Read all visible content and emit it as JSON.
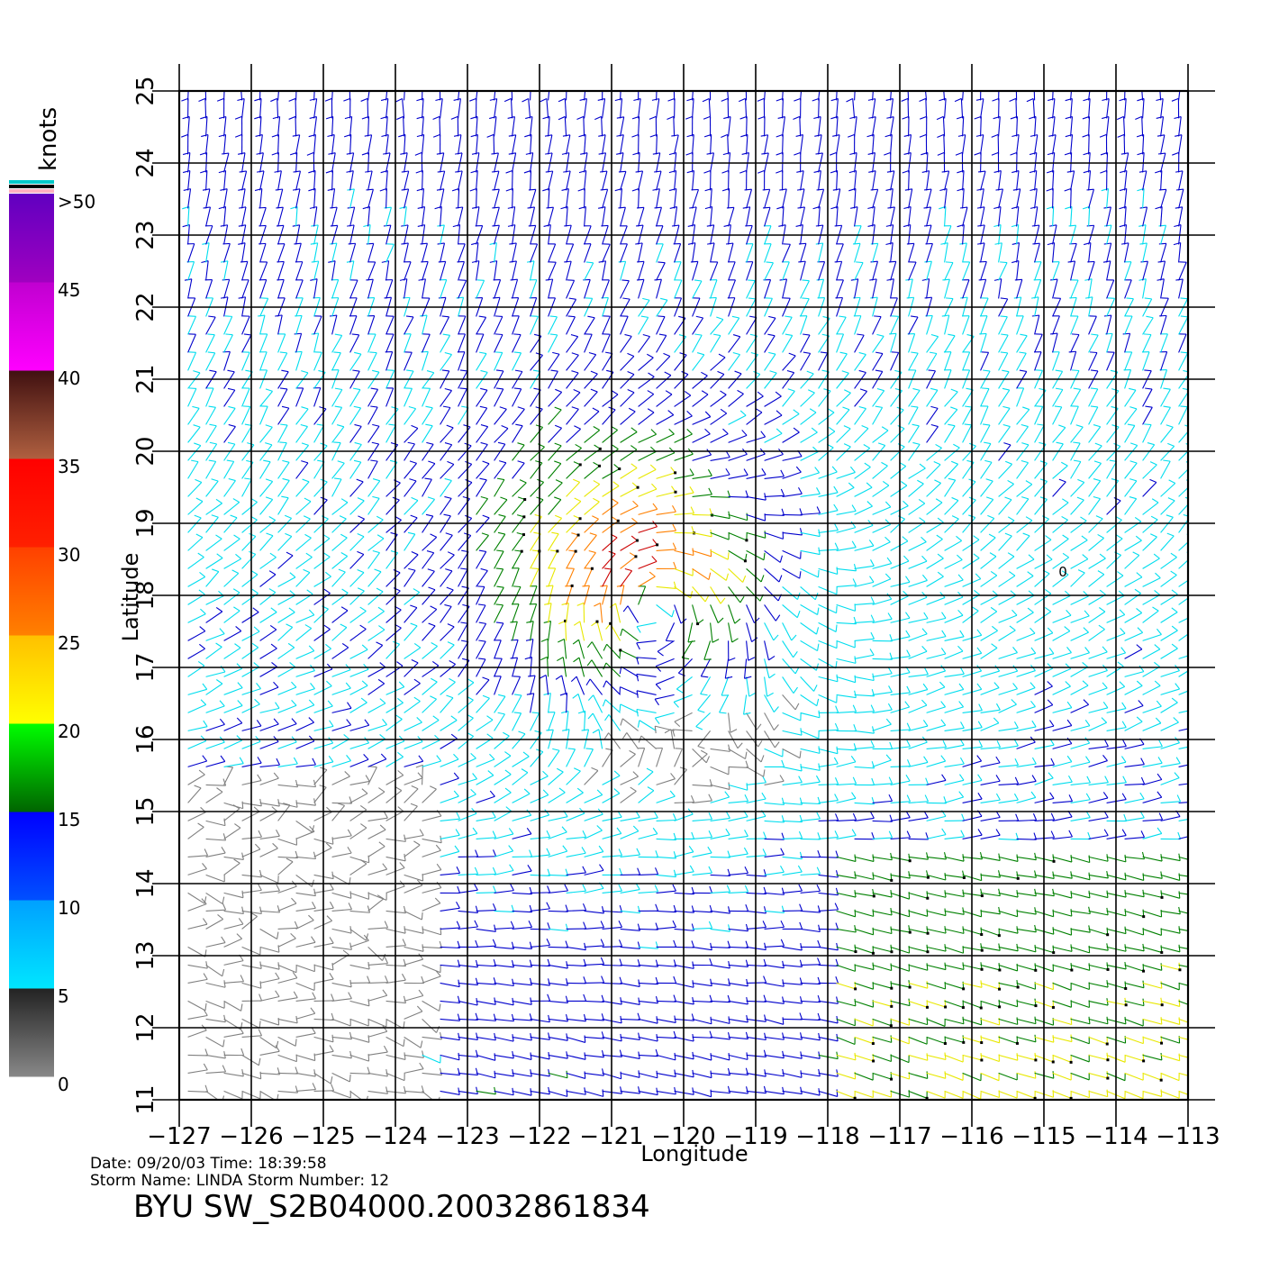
{
  "map": {
    "xlabel": "Longitude",
    "ylabel": "Latitude",
    "lon_range": [
      -127,
      -113
    ],
    "lat_range": [
      11,
      25
    ],
    "lon_ticks": [
      "−127",
      "−126",
      "−125",
      "−124",
      "−123",
      "−122",
      "−121",
      "−120",
      "−119",
      "−118",
      "−117",
      "−116",
      "−115",
      "−114",
      "−113"
    ],
    "lat_ticks": [
      "11",
      "12",
      "13",
      "14",
      "15",
      "16",
      "17",
      "18",
      "19",
      "20",
      "21",
      "22",
      "23",
      "24",
      "25"
    ],
    "storm_center": {
      "lon": -120.5,
      "lat": 17.9
    },
    "marker_label": "0"
  },
  "colorbar": {
    "unit": "knots",
    "labels": [
      ">50",
      "45",
      "40",
      "35",
      "30",
      "25",
      "20",
      "15",
      "10",
      "5",
      "0"
    ],
    "segments": [
      {
        "from": 0,
        "to": 5,
        "colors": [
          "#888888",
          "#222222"
        ]
      },
      {
        "from": 5,
        "to": 10,
        "colors": [
          "#00e6ff",
          "#00a0ff"
        ]
      },
      {
        "from": 10,
        "to": 15,
        "colors": [
          "#0050ff",
          "#0000ff"
        ]
      },
      {
        "from": 15,
        "to": 20,
        "colors": [
          "#006400",
          "#00ff00"
        ]
      },
      {
        "from": 20,
        "to": 25,
        "colors": [
          "#ffff00",
          "#ffc000"
        ]
      },
      {
        "from": 25,
        "to": 30,
        "colors": [
          "#ff8000",
          "#ff4000"
        ]
      },
      {
        "from": 30,
        "to": 35,
        "colors": [
          "#ff2000",
          "#ff0000"
        ]
      },
      {
        "from": 35,
        "to": 40,
        "colors": [
          "#b06040",
          "#401010"
        ]
      },
      {
        "from": 40,
        "to": 45,
        "colors": [
          "#ff00ff",
          "#c000d0"
        ]
      },
      {
        "from": 45,
        "to": 50,
        "colors": [
          "#a000c0",
          "#6000c0"
        ]
      }
    ],
    "top_stripes": [
      "#00c8c8",
      "#000000",
      "#ffb0c0"
    ]
  },
  "speed_colors": [
    "#808080",
    "#00ddee",
    "#0000cc",
    "#008000",
    "#e8e800",
    "#ff8000",
    "#cc0000"
  ],
  "info": {
    "line1": "Date:  09/20/03   Time:  18:39:58",
    "line2": "Storm  Name:  LINDA   Storm  Number:  12",
    "title": "BYU  SW_S2B04000.20032861834"
  }
}
